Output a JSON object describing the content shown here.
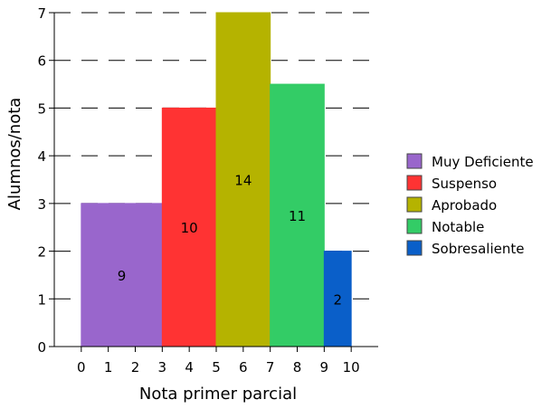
{
  "chart_data": {
    "type": "bar",
    "subtype": "histogram",
    "xlabel": "Nota primer parcial",
    "ylabel": "Alumnos/nota",
    "xlim": [
      -1,
      11
    ],
    "ylim": [
      0,
      7
    ],
    "x_ticks": [
      0,
      1,
      2,
      3,
      4,
      5,
      6,
      7,
      8,
      9,
      10
    ],
    "y_ticks": [
      0,
      1,
      2,
      3,
      4,
      5,
      6,
      7
    ],
    "grid": "horizontal dashed",
    "legend_position": "right",
    "bins": [
      {
        "name": "Muy Deficiente",
        "x_start": 0,
        "x_end": 3,
        "density": 3,
        "count": "9",
        "color": "#9966cc"
      },
      {
        "name": "Suspenso",
        "x_start": 3,
        "x_end": 5,
        "density": 5,
        "count": "10",
        "color": "#ff3333"
      },
      {
        "name": "Aprobado",
        "x_start": 5,
        "x_end": 7,
        "density": 7,
        "count": "14",
        "color": "#b5b300"
      },
      {
        "name": "Notable",
        "x_start": 7,
        "x_end": 9,
        "density": 5.5,
        "count": "11",
        "color": "#33cc66"
      },
      {
        "name": "Sobresaliente",
        "x_start": 9,
        "x_end": 10,
        "density": 2,
        "count": "2",
        "color": "#0a5fc9"
      }
    ]
  }
}
